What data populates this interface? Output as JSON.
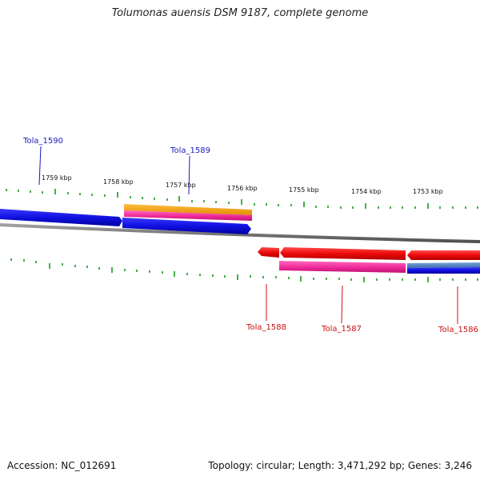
{
  "title": "Tolumonas auensis DSM 9187, complete genome",
  "footer": {
    "accession": "Accession: NC_012691",
    "summary": "Topology: circular; Length: 3,471,292 bp; Genes: 3,246"
  },
  "colors": {
    "forward_gene": "#1010e0",
    "reverse_gene": "#ee0a0a",
    "forward_label": "#1a1ab8",
    "reverse_label": "#cc1111",
    "cds_pink": "#ee2a9a",
    "orange": "#f5a300",
    "steel_blue": "#4a7fbf",
    "backbone": "#7a7a7a",
    "tick": "#1a9a1a"
  },
  "scale_labels": [
    "1759 kbp",
    "1758 kbp",
    "1757 kbp",
    "1756 kbp",
    "1755 kbp",
    "1754 kbp",
    "1753 kbp"
  ],
  "gene_labels": [
    {
      "name": "Tola_1590",
      "strand": "forward"
    },
    {
      "name": "Tola_1589",
      "strand": "forward"
    },
    {
      "name": "Tola_1588",
      "strand": "reverse"
    },
    {
      "name": "Tola_1587",
      "strand": "reverse"
    },
    {
      "name": "Tola_1586",
      "strand": "reverse"
    }
  ]
}
